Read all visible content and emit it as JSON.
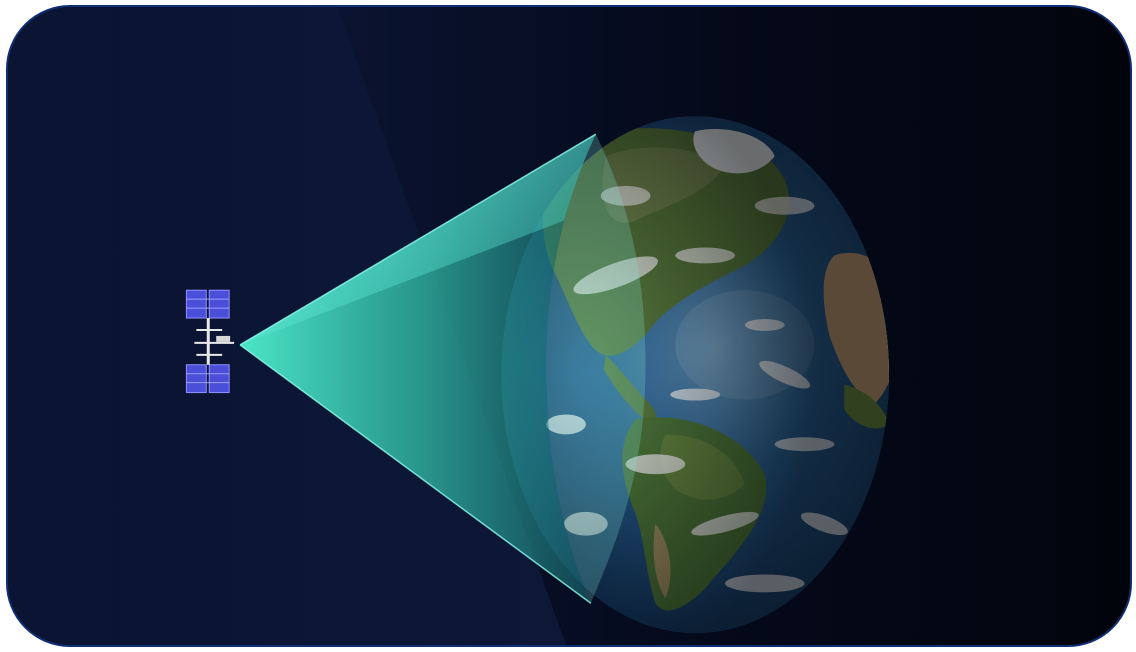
{
  "scene": {
    "subject": "satellite-view-cone-to-earth",
    "colors": {
      "space_left": "#0b1533",
      "space_right": "#02040c",
      "border": "#0f2e73",
      "beam": "#3fe3c4",
      "ocean": "#1e4f86",
      "land_green": "#4f7a3c",
      "land_desert": "#c9a27a",
      "solar_panel": "#4b4ed9"
    }
  }
}
